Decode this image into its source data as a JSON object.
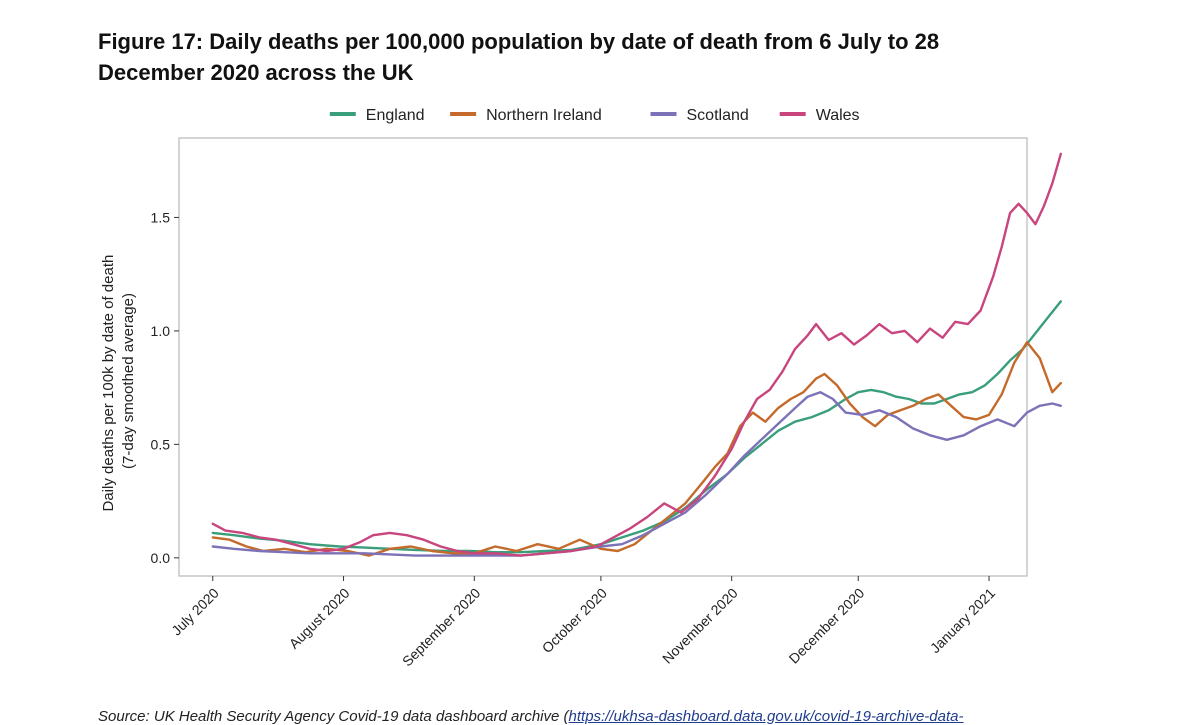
{
  "page": {
    "title": "Figure 17: Daily deaths per 100,000 population by date of death from 6 July to 28 December 2020 across the UK",
    "source_prefix": "Source: UK Health Security Agency Covid-19 data dashboard archive (",
    "source_link": "https://ukhsa-dashboard.data.gov.uk/covid-19-archive-data-"
  },
  "chart_data": {
    "type": "line",
    "title": "Figure 17: Daily deaths per 100,000 population by date of death from 6 July to 28 December 2020 across the UK",
    "ylabel_line1": "Daily deaths per 100k by date of death",
    "ylabel_line2": "(7-day smoothed average)",
    "xlabel": "",
    "ylim": [
      -0.08,
      1.85
    ],
    "xlim": [
      "2020-06-23",
      "2021-01-10"
    ],
    "yticks": [
      0.0,
      0.5,
      1.0,
      1.5
    ],
    "ytick_labels": [
      "0.0",
      "0.5",
      "1.0",
      "1.5"
    ],
    "xticks": [
      "2020-07-01",
      "2020-08-01",
      "2020-09-01",
      "2020-10-01",
      "2020-11-01",
      "2020-12-01",
      "2021-01-01"
    ],
    "xtick_labels": [
      "July 2020",
      "August 2020",
      "September 2020",
      "October 2020",
      "November 2020",
      "December 2020",
      "January 2021"
    ],
    "grid": false,
    "legend_position": "top",
    "series": [
      {
        "name": "England",
        "color": "#3a9e7b",
        "points": [
          [
            "2020-07-01",
            0.11
          ],
          [
            "2020-07-06",
            0.1
          ],
          [
            "2020-07-12",
            0.085
          ],
          [
            "2020-07-18",
            0.075
          ],
          [
            "2020-07-24",
            0.06
          ],
          [
            "2020-07-31",
            0.05
          ],
          [
            "2020-08-06",
            0.045
          ],
          [
            "2020-08-12",
            0.04
          ],
          [
            "2020-08-18",
            0.035
          ],
          [
            "2020-08-25",
            0.03
          ],
          [
            "2020-08-31",
            0.03
          ],
          [
            "2020-09-06",
            0.025
          ],
          [
            "2020-09-12",
            0.025
          ],
          [
            "2020-09-18",
            0.03
          ],
          [
            "2020-09-24",
            0.035
          ],
          [
            "2020-10-01",
            0.06
          ],
          [
            "2020-10-06",
            0.09
          ],
          [
            "2020-10-11",
            0.12
          ],
          [
            "2020-10-16",
            0.16
          ],
          [
            "2020-10-21",
            0.22
          ],
          [
            "2020-10-26",
            0.3
          ],
          [
            "2020-10-31",
            0.37
          ],
          [
            "2020-11-04",
            0.44
          ],
          [
            "2020-11-08",
            0.5
          ],
          [
            "2020-11-12",
            0.56
          ],
          [
            "2020-11-16",
            0.6
          ],
          [
            "2020-11-20",
            0.62
          ],
          [
            "2020-11-24",
            0.65
          ],
          [
            "2020-11-28",
            0.7
          ],
          [
            "2020-12-01",
            0.73
          ],
          [
            "2020-12-04",
            0.74
          ],
          [
            "2020-12-07",
            0.73
          ],
          [
            "2020-12-10",
            0.71
          ],
          [
            "2020-12-13",
            0.7
          ],
          [
            "2020-12-16",
            0.68
          ],
          [
            "2020-12-19",
            0.68
          ],
          [
            "2020-12-22",
            0.7
          ],
          [
            "2020-12-25",
            0.72
          ],
          [
            "2020-12-28",
            0.73
          ],
          [
            "2020-12-31",
            0.76
          ],
          [
            "2021-01-03",
            0.81
          ],
          [
            "2021-01-06",
            0.87
          ],
          [
            "2021-01-09",
            0.92
          ],
          [
            "2021-01-12",
            0.99
          ],
          [
            "2021-01-15",
            1.06
          ],
          [
            "2021-01-18",
            1.13
          ]
        ]
      },
      {
        "name": "Northern Ireland",
        "color": "#c46a2b",
        "points": [
          [
            "2020-07-01",
            0.09
          ],
          [
            "2020-07-05",
            0.08
          ],
          [
            "2020-07-09",
            0.05
          ],
          [
            "2020-07-13",
            0.03
          ],
          [
            "2020-07-18",
            0.04
          ],
          [
            "2020-07-23",
            0.025
          ],
          [
            "2020-07-28",
            0.04
          ],
          [
            "2020-08-02",
            0.03
          ],
          [
            "2020-08-07",
            0.01
          ],
          [
            "2020-08-12",
            0.04
          ],
          [
            "2020-08-17",
            0.05
          ],
          [
            "2020-08-22",
            0.03
          ],
          [
            "2020-08-27",
            0.02
          ],
          [
            "2020-09-01",
            0.02
          ],
          [
            "2020-09-06",
            0.05
          ],
          [
            "2020-09-11",
            0.03
          ],
          [
            "2020-09-16",
            0.06
          ],
          [
            "2020-09-21",
            0.04
          ],
          [
            "2020-09-26",
            0.08
          ],
          [
            "2020-10-01",
            0.04
          ],
          [
            "2020-10-05",
            0.03
          ],
          [
            "2020-10-09",
            0.06
          ],
          [
            "2020-10-13",
            0.12
          ],
          [
            "2020-10-17",
            0.18
          ],
          [
            "2020-10-21",
            0.24
          ],
          [
            "2020-10-25",
            0.33
          ],
          [
            "2020-10-28",
            0.4
          ],
          [
            "2020-10-31",
            0.46
          ],
          [
            "2020-11-03",
            0.58
          ],
          [
            "2020-11-06",
            0.64
          ],
          [
            "2020-11-09",
            0.6
          ],
          [
            "2020-11-12",
            0.66
          ],
          [
            "2020-11-15",
            0.7
          ],
          [
            "2020-11-18",
            0.73
          ],
          [
            "2020-11-21",
            0.79
          ],
          [
            "2020-11-23",
            0.81
          ],
          [
            "2020-11-26",
            0.76
          ],
          [
            "2020-11-29",
            0.68
          ],
          [
            "2020-12-02",
            0.62
          ],
          [
            "2020-12-05",
            0.58
          ],
          [
            "2020-12-08",
            0.63
          ],
          [
            "2020-12-11",
            0.65
          ],
          [
            "2020-12-14",
            0.67
          ],
          [
            "2020-12-17",
            0.7
          ],
          [
            "2020-12-20",
            0.72
          ],
          [
            "2020-12-23",
            0.67
          ],
          [
            "2020-12-26",
            0.62
          ],
          [
            "2020-12-29",
            0.61
          ],
          [
            "2021-01-01",
            0.63
          ],
          [
            "2021-01-04",
            0.72
          ],
          [
            "2021-01-07",
            0.86
          ],
          [
            "2021-01-10",
            0.95
          ],
          [
            "2021-01-13",
            0.88
          ],
          [
            "2021-01-16",
            0.73
          ],
          [
            "2021-01-18",
            0.77
          ]
        ]
      },
      {
        "name": "Scotland",
        "color": "#7b72b8",
        "points": [
          [
            "2020-07-01",
            0.05
          ],
          [
            "2020-07-06",
            0.04
          ],
          [
            "2020-07-12",
            0.03
          ],
          [
            "2020-07-18",
            0.025
          ],
          [
            "2020-07-24",
            0.02
          ],
          [
            "2020-07-31",
            0.02
          ],
          [
            "2020-08-06",
            0.02
          ],
          [
            "2020-08-12",
            0.015
          ],
          [
            "2020-08-18",
            0.01
          ],
          [
            "2020-08-25",
            0.01
          ],
          [
            "2020-08-31",
            0.01
          ],
          [
            "2020-09-06",
            0.01
          ],
          [
            "2020-09-12",
            0.01
          ],
          [
            "2020-09-18",
            0.02
          ],
          [
            "2020-09-24",
            0.03
          ],
          [
            "2020-10-01",
            0.05
          ],
          [
            "2020-10-06",
            0.06
          ],
          [
            "2020-10-11",
            0.1
          ],
          [
            "2020-10-16",
            0.15
          ],
          [
            "2020-10-21",
            0.2
          ],
          [
            "2020-10-26",
            0.28
          ],
          [
            "2020-10-31",
            0.37
          ],
          [
            "2020-11-04",
            0.45
          ],
          [
            "2020-11-08",
            0.52
          ],
          [
            "2020-11-12",
            0.59
          ],
          [
            "2020-11-16",
            0.66
          ],
          [
            "2020-11-19",
            0.71
          ],
          [
            "2020-11-22",
            0.73
          ],
          [
            "2020-11-25",
            0.7
          ],
          [
            "2020-11-28",
            0.64
          ],
          [
            "2020-12-02",
            0.63
          ],
          [
            "2020-12-06",
            0.65
          ],
          [
            "2020-12-10",
            0.62
          ],
          [
            "2020-12-14",
            0.57
          ],
          [
            "2020-12-18",
            0.54
          ],
          [
            "2020-12-22",
            0.52
          ],
          [
            "2020-12-26",
            0.54
          ],
          [
            "2020-12-30",
            0.58
          ],
          [
            "2021-01-03",
            0.61
          ],
          [
            "2021-01-07",
            0.58
          ],
          [
            "2021-01-10",
            0.64
          ],
          [
            "2021-01-13",
            0.67
          ],
          [
            "2021-01-16",
            0.68
          ],
          [
            "2021-01-18",
            0.67
          ]
        ]
      },
      {
        "name": "Wales",
        "color": "#c8457e",
        "points": [
          [
            "2020-07-01",
            0.15
          ],
          [
            "2020-07-04",
            0.12
          ],
          [
            "2020-07-08",
            0.11
          ],
          [
            "2020-07-12",
            0.09
          ],
          [
            "2020-07-16",
            0.08
          ],
          [
            "2020-07-20",
            0.06
          ],
          [
            "2020-07-24",
            0.04
          ],
          [
            "2020-07-28",
            0.03
          ],
          [
            "2020-08-01",
            0.04
          ],
          [
            "2020-08-05",
            0.07
          ],
          [
            "2020-08-08",
            0.1
          ],
          [
            "2020-08-12",
            0.11
          ],
          [
            "2020-08-16",
            0.1
          ],
          [
            "2020-08-20",
            0.08
          ],
          [
            "2020-08-24",
            0.05
          ],
          [
            "2020-08-28",
            0.03
          ],
          [
            "2020-09-01",
            0.02
          ],
          [
            "2020-09-06",
            0.02
          ],
          [
            "2020-09-12",
            0.01
          ],
          [
            "2020-09-18",
            0.02
          ],
          [
            "2020-09-24",
            0.03
          ],
          [
            "2020-09-30",
            0.05
          ],
          [
            "2020-10-04",
            0.09
          ],
          [
            "2020-10-08",
            0.13
          ],
          [
            "2020-10-12",
            0.18
          ],
          [
            "2020-10-16",
            0.24
          ],
          [
            "2020-10-20",
            0.2
          ],
          [
            "2020-10-24",
            0.26
          ],
          [
            "2020-10-28",
            0.36
          ],
          [
            "2020-11-01",
            0.48
          ],
          [
            "2020-11-04",
            0.6
          ],
          [
            "2020-11-07",
            0.7
          ],
          [
            "2020-11-10",
            0.74
          ],
          [
            "2020-11-13",
            0.82
          ],
          [
            "2020-11-16",
            0.92
          ],
          [
            "2020-11-19",
            0.98
          ],
          [
            "2020-11-21",
            1.03
          ],
          [
            "2020-11-24",
            0.96
          ],
          [
            "2020-11-27",
            0.99
          ],
          [
            "2020-11-30",
            0.94
          ],
          [
            "2020-12-03",
            0.98
          ],
          [
            "2020-12-06",
            1.03
          ],
          [
            "2020-12-09",
            0.99
          ],
          [
            "2020-12-12",
            1.0
          ],
          [
            "2020-12-15",
            0.95
          ],
          [
            "2020-12-18",
            1.01
          ],
          [
            "2020-12-21",
            0.97
          ],
          [
            "2020-12-24",
            1.04
          ],
          [
            "2020-12-27",
            1.03
          ],
          [
            "2020-12-30",
            1.09
          ],
          [
            "2021-01-02",
            1.24
          ],
          [
            "2021-01-04",
            1.37
          ],
          [
            "2021-01-06",
            1.52
          ],
          [
            "2021-01-08",
            1.56
          ],
          [
            "2021-01-10",
            1.52
          ],
          [
            "2021-01-12",
            1.47
          ],
          [
            "2021-01-14",
            1.55
          ],
          [
            "2021-01-16",
            1.65
          ],
          [
            "2021-01-18",
            1.78
          ]
        ]
      }
    ]
  }
}
